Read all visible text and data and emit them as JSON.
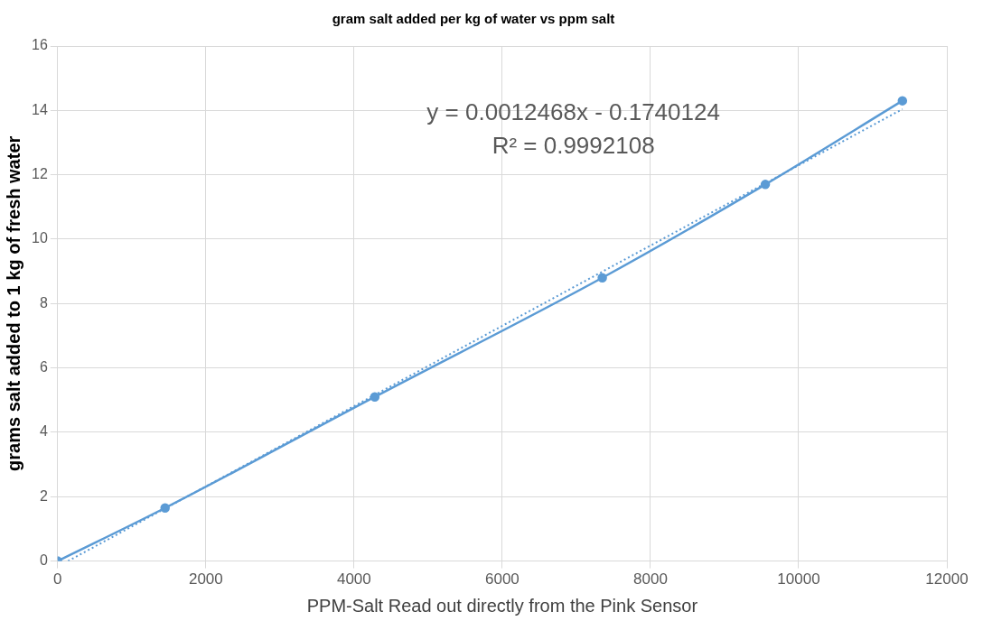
{
  "chart_data": {
    "type": "line",
    "title": "gram salt added per kg of water vs ppm salt",
    "xlabel": "PPM-Salt Read out directly from the Pink Sensor",
    "ylabel": "grams salt added to 1 kg of fresh water",
    "annotations": [
      "y = 0.0012468x - 0.1740124",
      "R² = 0.9992108"
    ],
    "series": [
      {
        "color": "#5b9bd5",
        "x": [
          0,
          1450,
          4280,
          7350,
          9550,
          11400
        ],
        "values": [
          0,
          1.65,
          5.1,
          8.8,
          11.7,
          14.3
        ],
        "marker": "circle",
        "line_style": "solid"
      },
      {
        "type": "line",
        "color": "#5b9bd5",
        "x": [
          140,
          11400
        ],
        "values": [
          0,
          14.04
        ],
        "marker": "none",
        "line_style": "dotted"
      }
    ],
    "xlim": [
      0,
      12000
    ],
    "xticks": [
      0,
      2000,
      4000,
      6000,
      8000,
      10000,
      12000
    ],
    "ylim": [
      0,
      16
    ],
    "yticks": [
      0,
      2,
      4,
      6,
      8,
      10,
      12,
      14,
      16
    ],
    "grid": true,
    "legend": false
  }
}
